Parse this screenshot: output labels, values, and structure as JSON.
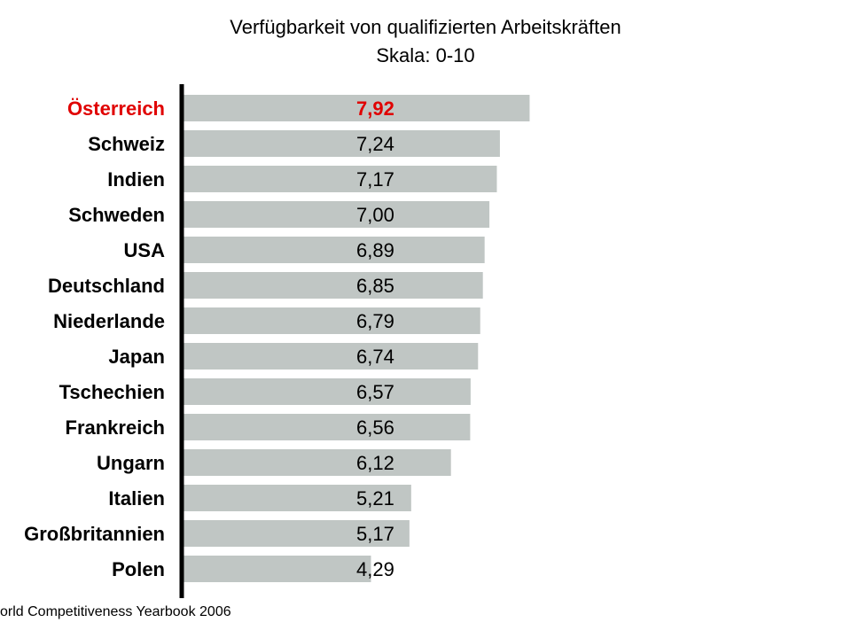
{
  "chart_data": {
    "type": "bar",
    "orientation": "horizontal",
    "title": "Verfügbarkeit von qualifizierten Arbeitskräften",
    "subtitle": "Skala: 0-10",
    "categories": [
      "Österreich",
      "Schweiz",
      "Indien",
      "Schweden",
      "USA",
      "Deutschland",
      "Niederlande",
      "Japan",
      "Tschechien",
      "Frankreich",
      "Ungarn",
      "Italien",
      "Großbritannien",
      "Polen"
    ],
    "values": [
      7.92,
      7.24,
      7.17,
      7.0,
      6.89,
      6.85,
      6.79,
      6.74,
      6.57,
      6.56,
      6.12,
      5.21,
      5.17,
      4.29
    ],
    "value_labels": [
      "7,92",
      "7,24",
      "7,17",
      "7,00",
      "6,89",
      "6,85",
      "6,79",
      "6,74",
      "6,57",
      "6,56",
      "6,12",
      "5,21",
      "5,17",
      "4,29"
    ],
    "highlight_index": 0,
    "xlim": [
      0,
      10
    ],
    "grid": false,
    "legend": "none",
    "colors": {
      "bar": "#c0c6c4",
      "highlight_text": "#e00000",
      "text": "#000000",
      "axis": "#000000"
    },
    "source": "orld Competitiveness Yearbook 2006"
  }
}
